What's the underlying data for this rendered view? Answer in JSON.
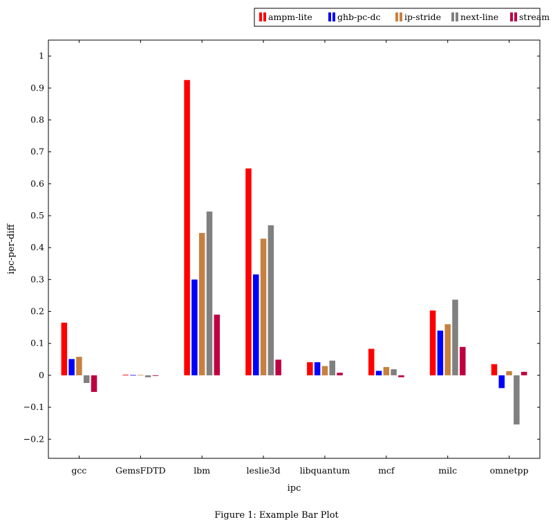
{
  "caption": "Figure 1: Example Bar Plot",
  "chart_data": {
    "type": "bar",
    "xlabel": "ipc",
    "ylabel": "ipc-per-diff",
    "ylim": [
      -0.26,
      1.05
    ],
    "yticks": [
      -0.2,
      -0.1,
      0,
      0.1,
      0.2,
      0.3,
      0.4,
      0.5,
      0.6,
      0.7,
      0.8,
      0.9,
      1
    ],
    "ytick_labels": [
      "−0.2",
      "−0.1",
      "0",
      "0.1",
      "0.2",
      "0.3",
      "0.4",
      "0.5",
      "0.6",
      "0.7",
      "0.8",
      "0.9",
      "1"
    ],
    "grid": false,
    "legend_position": "top-right, outside",
    "categories": [
      "gcc",
      "GemsFDTD",
      "lbm",
      "leslie3d",
      "libquantum",
      "mcf",
      "milc",
      "omnetpp"
    ],
    "series": [
      {
        "name": "ampm-lite",
        "color": "#ff0000",
        "values": [
          0.165,
          0.002,
          0.925,
          0.648,
          0.041,
          0.083,
          0.203,
          0.035
        ]
      },
      {
        "name": "ghb-pc-dc",
        "color": "#0000ff",
        "values": [
          0.051,
          0.001,
          0.3,
          0.316,
          0.041,
          0.014,
          0.14,
          -0.04
        ]
      },
      {
        "name": "ip-stride",
        "color": "#c88040",
        "values": [
          0.058,
          0.001,
          0.446,
          0.428,
          0.029,
          0.026,
          0.16,
          0.013
        ]
      },
      {
        "name": "next-line",
        "color": "#808080",
        "values": [
          -0.024,
          -0.006,
          0.513,
          0.47,
          0.046,
          0.019,
          0.237,
          -0.154
        ]
      },
      {
        "name": "stream",
        "color": "#bf0040",
        "values": [
          -0.052,
          -0.002,
          0.19,
          0.049,
          0.008,
          -0.006,
          0.089,
          0.011
        ]
      }
    ]
  }
}
